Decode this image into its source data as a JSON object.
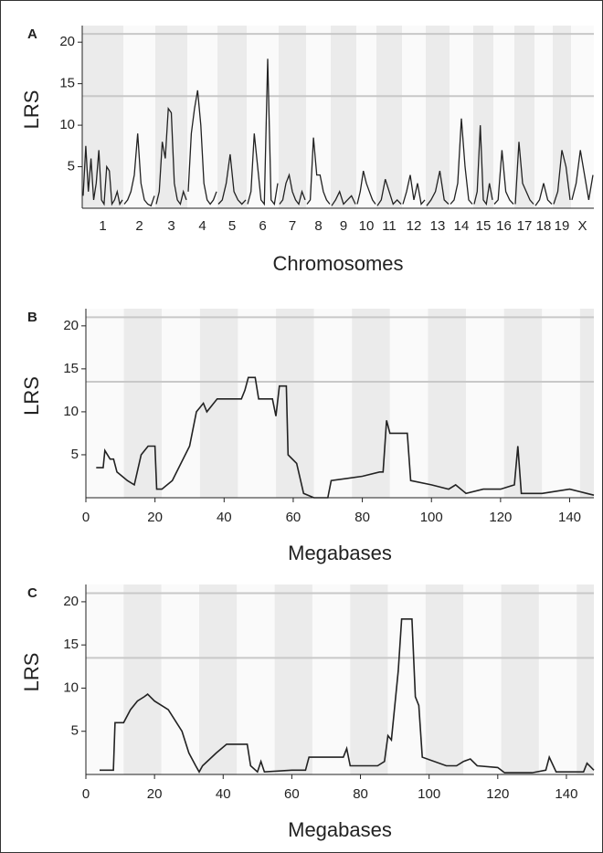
{
  "chart_data": [
    {
      "type": "line",
      "panel": "A",
      "ylabel": "LRS",
      "xlabel": "Chromosomes",
      "categories": [
        "1",
        "2",
        "3",
        "4",
        "5",
        "6",
        "7",
        "8",
        "9",
        "10",
        "11",
        "12",
        "13",
        "14",
        "15",
        "16",
        "17",
        "18",
        "19",
        "X"
      ],
      "values": [
        [
          1.5,
          7.5,
          2,
          6,
          1,
          3,
          7,
          1,
          0.5,
          5,
          4.5,
          0.5,
          1,
          2,
          0.5,
          1
        ],
        [
          0.5,
          1,
          2,
          4,
          9,
          3,
          1,
          0.5,
          0.3,
          1.5
        ],
        [
          0.5,
          2,
          8,
          6,
          12,
          11.5,
          3,
          1,
          0.5,
          2,
          1
        ],
        [
          2,
          9,
          12,
          14.2,
          10,
          3,
          1,
          0.5,
          1,
          2
        ],
        [
          0.5,
          1,
          3,
          6.5,
          2,
          1,
          0.5,
          1
        ],
        [
          0.5,
          2,
          9,
          5,
          1,
          0.5,
          18,
          1,
          0.5,
          3
        ],
        [
          0.5,
          1,
          3,
          4,
          2,
          1,
          0.5,
          2,
          1
        ],
        [
          0.5,
          1,
          8.5,
          4,
          4,
          2,
          1,
          0.5
        ],
        [
          0.3,
          1,
          2,
          0.5,
          1,
          1.5,
          0.5
        ],
        [
          0.5,
          2,
          4.5,
          3,
          2,
          1,
          0.5
        ],
        [
          0.3,
          1,
          3.5,
          2,
          0.5,
          1,
          0.5
        ],
        [
          0.5,
          2,
          4,
          1,
          3,
          0.5,
          1
        ],
        [
          0.3,
          1,
          2,
          4.5,
          1,
          0.5
        ],
        [
          0.5,
          1,
          3,
          10.8,
          5,
          1,
          0.5
        ],
        [
          0.5,
          2,
          10,
          1,
          0.5,
          3,
          1
        ],
        [
          0.5,
          1,
          7,
          2,
          1,
          0.5
        ],
        [
          0.5,
          8,
          3,
          2,
          1,
          0.5
        ],
        [
          0.3,
          1,
          3,
          1,
          0.5
        ],
        [
          0.5,
          2,
          7,
          5,
          1
        ],
        [
          1,
          3,
          7,
          4,
          1,
          4
        ]
      ],
      "ylim": [
        0,
        22
      ],
      "yticks": [
        5,
        10,
        15,
        20
      ],
      "thresholds": [
        13.5,
        21
      ],
      "color": "#222222"
    },
    {
      "type": "line",
      "panel": "B",
      "ylabel": "LRS",
      "xlabel": "Megabases",
      "x": [
        3,
        5,
        5.5,
        7,
        8,
        9,
        12,
        14,
        16,
        18,
        20,
        20.5,
        22,
        25,
        30,
        32,
        33,
        34,
        35,
        38,
        45,
        46,
        47,
        49,
        50,
        54,
        55,
        56,
        58,
        58.5,
        61,
        63,
        66,
        70,
        71,
        80,
        85,
        86,
        87,
        88,
        93,
        94,
        100,
        105,
        107,
        110,
        115,
        120,
        124,
        125,
        126,
        132,
        140,
        145,
        147
      ],
      "values": [
        3.5,
        3.5,
        5.5,
        4.5,
        4.5,
        3,
        2,
        1.5,
        5,
        6,
        6,
        1,
        1,
        2,
        6,
        10,
        10.5,
        11,
        10,
        11.5,
        11.5,
        12.5,
        14,
        14,
        11.5,
        11.5,
        9.5,
        13,
        13,
        5,
        4,
        0.5,
        0,
        0,
        2,
        2.5,
        3,
        3,
        9,
        7.5,
        7.5,
        2,
        1.5,
        1,
        1.5,
        0.5,
        1,
        1,
        1.5,
        6,
        0.5,
        0.5,
        1,
        0.5,
        0.3
      ],
      "xlim": [
        0,
        147
      ],
      "xticks": [
        0,
        20,
        40,
        60,
        80,
        100,
        120,
        140
      ],
      "ylim": [
        0,
        22
      ],
      "yticks": [
        5,
        10,
        15,
        20
      ],
      "thresholds": [
        13.5,
        21
      ],
      "color": "#222222"
    },
    {
      "type": "line",
      "panel": "C",
      "ylabel": "LRS",
      "xlabel": "Megabases",
      "x": [
        4,
        8,
        8.5,
        11,
        13,
        15,
        17,
        18,
        20,
        24,
        28,
        30,
        32,
        33,
        34,
        38,
        41,
        47,
        48,
        50,
        51,
        52,
        60,
        64,
        65,
        75,
        76,
        77,
        85,
        87,
        88,
        89,
        91,
        92,
        95,
        96,
        97,
        98,
        105,
        108,
        110,
        112,
        114,
        120,
        122,
        130,
        134,
        135,
        137,
        140,
        145,
        146,
        148
      ],
      "values": [
        0.5,
        0.5,
        6,
        6,
        7.5,
        8.5,
        9,
        9.3,
        8.5,
        7.5,
        5,
        2.5,
        1,
        0.3,
        1,
        2.5,
        3.5,
        3.5,
        1,
        0.3,
        1.5,
        0.3,
        0.5,
        0.5,
        2,
        2,
        3,
        1,
        1,
        1.5,
        4.5,
        4,
        12,
        18,
        18,
        9,
        8,
        2,
        1,
        1,
        1.5,
        1.8,
        1,
        0.8,
        0.2,
        0.2,
        0.5,
        2,
        0.3,
        0.3,
        0.3,
        1.3,
        0.5
      ],
      "xlim": [
        0,
        148
      ],
      "xticks": [
        0,
        20,
        40,
        60,
        80,
        100,
        120,
        140
      ],
      "ylim": [
        0,
        22
      ],
      "yticks": [
        5,
        10,
        15,
        20
      ],
      "thresholds": [
        13.5,
        21
      ],
      "color": "#222222"
    }
  ]
}
